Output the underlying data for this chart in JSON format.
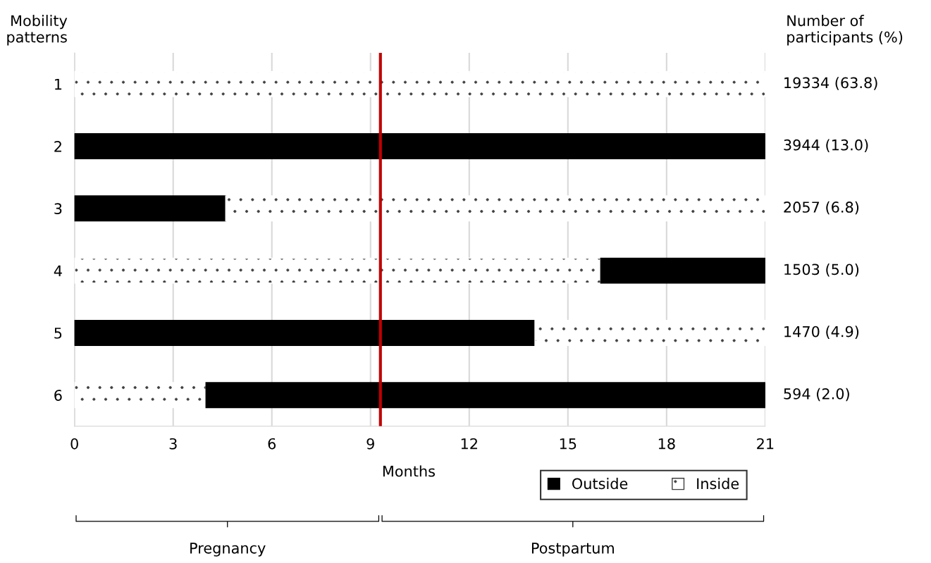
{
  "chart_data": {
    "type": "bar",
    "orientation": "horizontal",
    "stacked": true,
    "ylabel": "Mobility patterns",
    "y2label": "Number of participants (%)",
    "xlabel": "Months",
    "categories": [
      "1",
      "2",
      "3",
      "4",
      "5",
      "6"
    ],
    "series": [
      {
        "name": "Outside",
        "color": "#000000",
        "values": [
          0,
          21,
          4.6,
          0,
          14,
          0
        ]
      },
      {
        "name": "Inside",
        "color": "#ffffff",
        "values": [
          21,
          0,
          16.4,
          16,
          7,
          4
        ]
      },
      {
        "color": "#000000",
        "values": [
          0,
          0,
          0,
          5,
          0,
          17
        ]
      }
    ],
    "xlim": [
      0,
      21
    ],
    "xticks": [
      0,
      3,
      6,
      9,
      12,
      15,
      18,
      21
    ],
    "grid": "x",
    "legend": "bottom right",
    "ref_lines": [
      {
        "axis": "x",
        "value": 9.3,
        "color": "#c00000"
      }
    ],
    "annotations": [
      "19334 (63.8)",
      "3944 (13.0)",
      "2057 (6.8)",
      "1503 (5.0)",
      "1470 (4.9)",
      "594 (2.0)",
      "Pregnancy",
      "Postpartum"
    ]
  }
}
